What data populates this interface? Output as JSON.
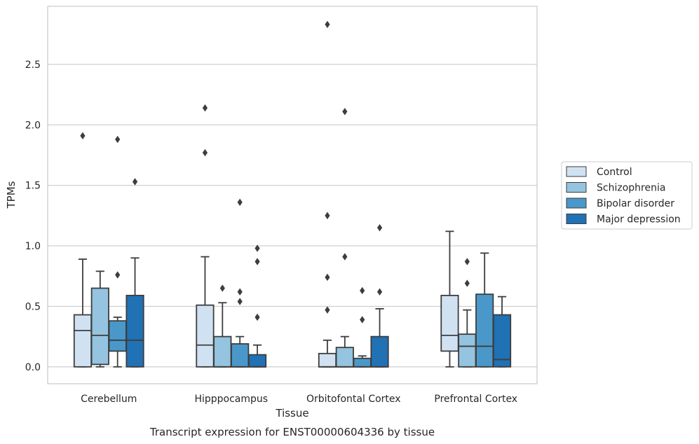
{
  "chart_data": {
    "type": "box",
    "title": "",
    "caption": "Transcript expression for ENST00000604336 by tissue",
    "xlabel": "Tissue",
    "ylabel": "TPMs",
    "ylim": [
      -0.14,
      2.98
    ],
    "yticks": [
      "0.0",
      "0.5",
      "1.0",
      "1.5",
      "2.0",
      "2.5"
    ],
    "grid": "horizontal",
    "legend_position": "right",
    "categories": [
      "Cerebellum",
      "Hipppocampus",
      "Orbitofontal Cortex",
      "Prefrontal Cortex"
    ],
    "series": [
      {
        "name": "Control",
        "color": "#d0e1f2",
        "boxes": [
          {
            "whislo": 0.0,
            "q1": 0.0,
            "med": 0.3,
            "q3": 0.43,
            "whishi": 0.89,
            "fliers": [
              1.91
            ]
          },
          {
            "whislo": 0.0,
            "q1": 0.0,
            "med": 0.18,
            "q3": 0.51,
            "whishi": 0.91,
            "fliers": [
              1.77,
              2.14
            ]
          },
          {
            "whislo": 0.0,
            "q1": 0.0,
            "med": 0.0,
            "q3": 0.11,
            "whishi": 0.22,
            "fliers": [
              0.47,
              0.74,
              1.25,
              2.83
            ]
          },
          {
            "whislo": 0.0,
            "q1": 0.13,
            "med": 0.26,
            "q3": 0.59,
            "whishi": 1.12,
            "fliers": []
          }
        ]
      },
      {
        "name": "Schizophrenia",
        "color": "#94c4df",
        "boxes": [
          {
            "whislo": 0.0,
            "q1": 0.02,
            "med": 0.26,
            "q3": 0.65,
            "whishi": 0.79,
            "fliers": []
          },
          {
            "whislo": 0.0,
            "q1": 0.0,
            "med": 0.0,
            "q3": 0.25,
            "whishi": 0.53,
            "fliers": [
              0.65
            ]
          },
          {
            "whislo": 0.0,
            "q1": 0.0,
            "med": 0.0,
            "q3": 0.16,
            "whishi": 0.25,
            "fliers": [
              0.91,
              2.11
            ]
          },
          {
            "whislo": 0.0,
            "q1": 0.0,
            "med": 0.17,
            "q3": 0.27,
            "whishi": 0.47,
            "fliers": [
              0.69,
              0.87
            ]
          }
        ]
      },
      {
        "name": "Bipolar disorder",
        "color": "#4a98c9",
        "boxes": [
          {
            "whislo": 0.0,
            "q1": 0.13,
            "med": 0.22,
            "q3": 0.38,
            "whishi": 0.41,
            "fliers": [
              0.76,
              1.88
            ]
          },
          {
            "whislo": 0.0,
            "q1": 0.0,
            "med": 0.0,
            "q3": 0.19,
            "whishi": 0.25,
            "fliers": [
              0.54,
              0.62,
              1.36
            ]
          },
          {
            "whislo": 0.0,
            "q1": 0.0,
            "med": 0.0,
            "q3": 0.07,
            "whishi": 0.09,
            "fliers": [
              0.39,
              0.63
            ]
          },
          {
            "whislo": 0.0,
            "q1": 0.0,
            "med": 0.17,
            "q3": 0.6,
            "whishi": 0.94,
            "fliers": []
          }
        ]
      },
      {
        "name": "Major depression",
        "color": "#2171b5",
        "boxes": [
          {
            "whislo": 0.0,
            "q1": 0.0,
            "med": 0.22,
            "q3": 0.59,
            "whishi": 0.9,
            "fliers": [
              1.53
            ]
          },
          {
            "whislo": 0.0,
            "q1": 0.0,
            "med": 0.0,
            "q3": 0.1,
            "whishi": 0.18,
            "fliers": [
              0.41,
              0.87,
              0.98
            ]
          },
          {
            "whislo": 0.0,
            "q1": 0.0,
            "med": 0.0,
            "q3": 0.25,
            "whishi": 0.48,
            "fliers": [
              0.62,
              1.15
            ]
          },
          {
            "whislo": 0.0,
            "q1": 0.0,
            "med": 0.06,
            "q3": 0.43,
            "whishi": 0.58,
            "fliers": []
          }
        ]
      }
    ]
  }
}
